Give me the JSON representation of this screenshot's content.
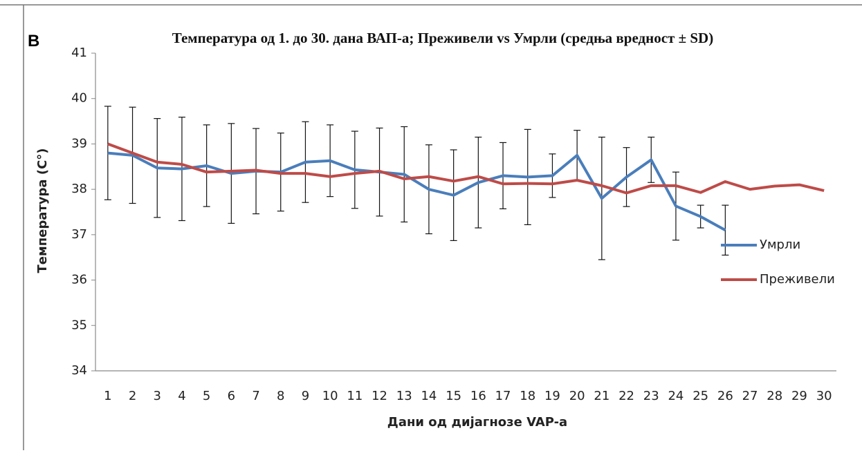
{
  "chart_data": {
    "type": "line",
    "panel_label": "B",
    "title": "Температура од 1. до 30. дана ВАП-а; Преживели vs Умрли (средња вредност ± SD)",
    "x_label": "Дани од дијагнозе VAP-a",
    "y_label": "Температура (C°)",
    "categories": [
      "1",
      "2",
      "3",
      "4",
      "5",
      "6",
      "7",
      "8",
      "9",
      "10",
      "11",
      "12",
      "13",
      "14",
      "15",
      "16",
      "17",
      "18",
      "19",
      "20",
      "21",
      "22",
      "23",
      "24",
      "25",
      "26",
      "27",
      "28",
      "29",
      "30"
    ],
    "series": [
      {
        "name": "Умрли",
        "color": "#4a7ebb",
        "values": [
          38.8,
          38.75,
          38.47,
          38.45,
          38.52,
          38.35,
          38.4,
          38.38,
          38.6,
          38.63,
          38.43,
          38.38,
          38.33,
          38.0,
          37.87,
          38.15,
          38.3,
          38.27,
          38.3,
          38.75,
          37.8,
          38.27,
          38.65,
          37.63,
          37.4,
          37.1,
          null,
          null,
          null,
          null
        ],
        "errors": [
          1.03,
          1.06,
          1.09,
          1.14,
          0.9,
          1.1,
          0.94,
          0.86,
          0.89,
          0.79,
          0.85,
          0.97,
          1.05,
          0.98,
          1.0,
          1.0,
          0.73,
          1.05,
          0.48,
          0.55,
          1.35,
          0.65,
          0.5,
          0.75,
          0.25,
          0.55,
          null,
          null,
          null,
          null
        ]
      },
      {
        "name": "Преживели",
        "color": "#be4b48",
        "values": [
          39.0,
          38.8,
          38.6,
          38.55,
          38.38,
          38.4,
          38.42,
          38.35,
          38.35,
          38.28,
          38.35,
          38.4,
          38.23,
          38.28,
          38.18,
          38.28,
          38.12,
          38.13,
          38.12,
          38.2,
          38.08,
          37.92,
          38.08,
          38.08,
          37.93,
          38.17,
          38.0,
          38.07,
          38.1,
          37.97
        ]
      }
    ],
    "ylim": [
      34,
      41
    ],
    "yticks": [
      34,
      35,
      36,
      37,
      38,
      39,
      40,
      41
    ],
    "grid": false,
    "legend": "right"
  }
}
